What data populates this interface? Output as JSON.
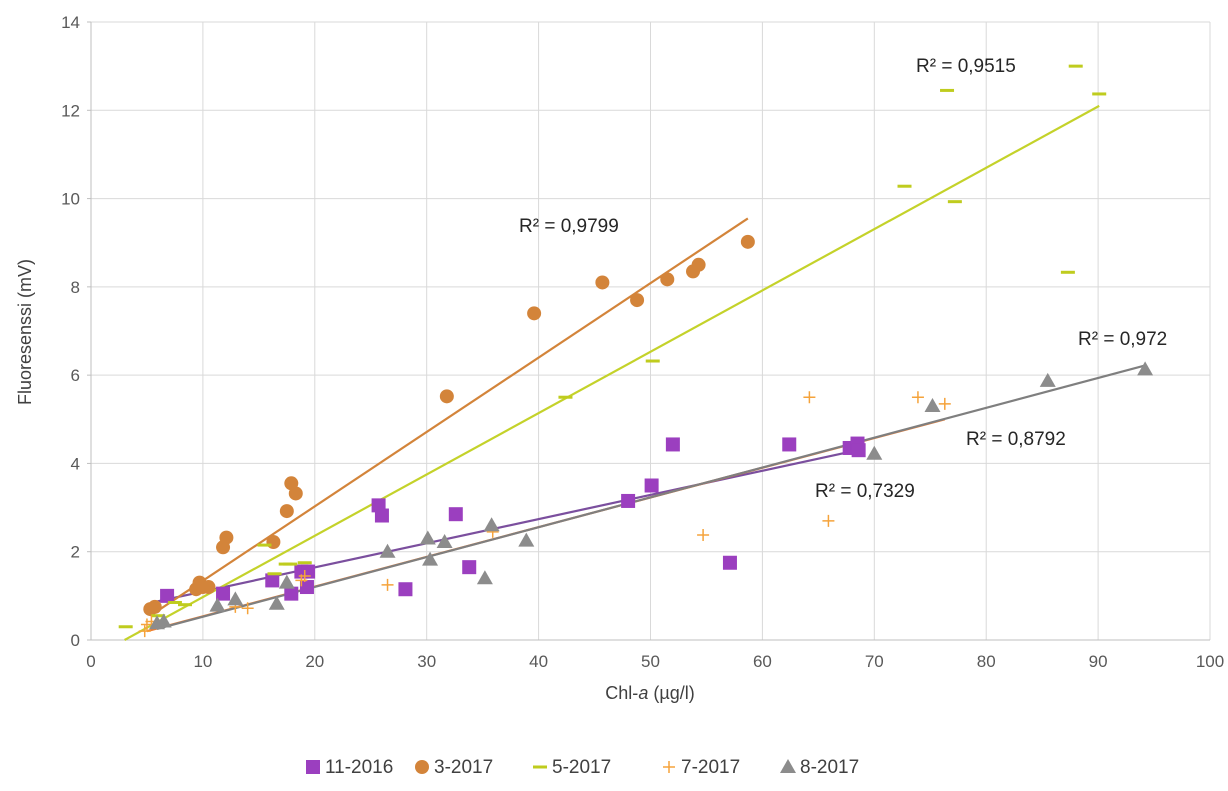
{
  "chart_data": {
    "type": "scatter",
    "xlabel_main": "Chl-",
    "xlabel_italic": "a",
    "xlabel_unit": " (µg/l)",
    "ylabel": "Fluoresenssi (mV)",
    "xlim": [
      0,
      100
    ],
    "ylim": [
      0,
      14
    ],
    "x_ticks": [
      "0",
      "10",
      "20",
      "30",
      "40",
      "50",
      "60",
      "70",
      "80",
      "90",
      "100"
    ],
    "y_ticks": [
      "0",
      "2",
      "4",
      "6",
      "8",
      "10",
      "12",
      "14"
    ],
    "grid": true,
    "legend_position": "bottom",
    "series": [
      {
        "name": "11-2016",
        "color": "#9b3fbf",
        "marker": "square",
        "points": [
          [
            6.8,
            1.0
          ],
          [
            11.8,
            1.05
          ],
          [
            16.2,
            1.35
          ],
          [
            17.9,
            1.05
          ],
          [
            18.8,
            1.55
          ],
          [
            19.3,
            1.2
          ],
          [
            19.4,
            1.55
          ],
          [
            25.7,
            3.05
          ],
          [
            26.0,
            2.82
          ],
          [
            28.1,
            1.15
          ],
          [
            32.6,
            2.85
          ],
          [
            33.8,
            1.65
          ],
          [
            48.0,
            3.15
          ],
          [
            50.1,
            3.5
          ],
          [
            52.0,
            4.43
          ],
          [
            57.1,
            1.75
          ],
          [
            62.4,
            4.43
          ],
          [
            67.8,
            4.35
          ],
          [
            68.5,
            4.45
          ],
          [
            68.6,
            4.3
          ]
        ],
        "trend": [
          [
            5.5,
            0.85
          ],
          [
            68.5,
            4.3
          ]
        ],
        "trend_color": "#7b4f9e",
        "r2": "R² = 0,7329"
      },
      {
        "name": "3-2017",
        "color": "#d3843a",
        "marker": "circle",
        "points": [
          [
            5.3,
            0.7
          ],
          [
            5.7,
            0.75
          ],
          [
            9.4,
            1.15
          ],
          [
            9.7,
            1.3
          ],
          [
            10.0,
            1.2
          ],
          [
            10.5,
            1.2
          ],
          [
            11.8,
            2.1
          ],
          [
            12.1,
            2.32
          ],
          [
            16.3,
            2.22
          ],
          [
            17.5,
            2.92
          ],
          [
            17.9,
            3.55
          ],
          [
            18.3,
            3.32
          ],
          [
            31.8,
            5.52
          ],
          [
            39.6,
            7.4
          ],
          [
            45.7,
            8.1
          ],
          [
            48.8,
            7.7
          ],
          [
            51.5,
            8.17
          ],
          [
            53.8,
            8.35
          ],
          [
            54.3,
            8.5
          ],
          [
            58.7,
            9.02
          ]
        ],
        "trend": [
          [
            5.3,
            0.55
          ],
          [
            58.7,
            9.55
          ]
        ],
        "trend_color": "#d3843a",
        "r2": "R² = 0,9799"
      },
      {
        "name": "5-2017",
        "color": "#bfcc1e",
        "marker": "dash",
        "points": [
          [
            3.1,
            0.3
          ],
          [
            6.0,
            0.55
          ],
          [
            7.5,
            0.85
          ],
          [
            8.4,
            0.8
          ],
          [
            15.5,
            2.15
          ],
          [
            16.4,
            1.5
          ],
          [
            17.4,
            1.72
          ],
          [
            17.8,
            1.72
          ],
          [
            19.1,
            1.75
          ],
          [
            42.4,
            5.5
          ],
          [
            50.2,
            6.32
          ],
          [
            72.7,
            10.28
          ],
          [
            76.5,
            12.45
          ],
          [
            77.2,
            9.93
          ],
          [
            87.3,
            8.33
          ],
          [
            88.0,
            13.0
          ],
          [
            90.1,
            12.37
          ]
        ],
        "trend": [
          [
            3.0,
            0.0
          ],
          [
            90.1,
            12.1
          ]
        ],
        "trend_color": "#c4d22a",
        "r2": "R² = 0,9515"
      },
      {
        "name": "7-2017",
        "color": "#f5a33b",
        "marker": "plus",
        "points": [
          [
            4.8,
            0.2
          ],
          [
            5.0,
            0.35
          ],
          [
            5.4,
            0.42
          ],
          [
            12.9,
            0.75
          ],
          [
            14.0,
            0.72
          ],
          [
            18.8,
            1.35
          ],
          [
            19.1,
            1.45
          ],
          [
            26.5,
            1.25
          ],
          [
            35.9,
            2.45
          ],
          [
            54.7,
            2.38
          ],
          [
            64.2,
            5.5
          ],
          [
            65.9,
            2.7
          ],
          [
            73.9,
            5.5
          ],
          [
            76.3,
            5.35
          ]
        ],
        "trend": [
          [
            5.0,
            0.2
          ],
          [
            76.3,
            5.0
          ]
        ],
        "trend_color": "#ed7d31",
        "r2": "R² = 0,8792"
      },
      {
        "name": "8-2017",
        "color": "#8c8c8c",
        "marker": "triangle",
        "points": [
          [
            5.9,
            0.38
          ],
          [
            6.5,
            0.42
          ],
          [
            11.3,
            0.78
          ],
          [
            12.9,
            0.92
          ],
          [
            16.6,
            0.82
          ],
          [
            17.5,
            1.3
          ],
          [
            26.5,
            2.0
          ],
          [
            30.1,
            2.3
          ],
          [
            30.3,
            1.82
          ],
          [
            31.6,
            2.22
          ],
          [
            35.2,
            1.4
          ],
          [
            35.8,
            2.6
          ],
          [
            38.9,
            2.25
          ],
          [
            70.0,
            4.22
          ],
          [
            75.2,
            5.3
          ],
          [
            85.5,
            5.87
          ],
          [
            94.2,
            6.13
          ]
        ],
        "trend": [
          [
            5.9,
            0.25
          ],
          [
            94.2,
            6.22
          ]
        ],
        "trend_color": "#7f7f7f",
        "r2": "R² = 0,972"
      }
    ]
  }
}
